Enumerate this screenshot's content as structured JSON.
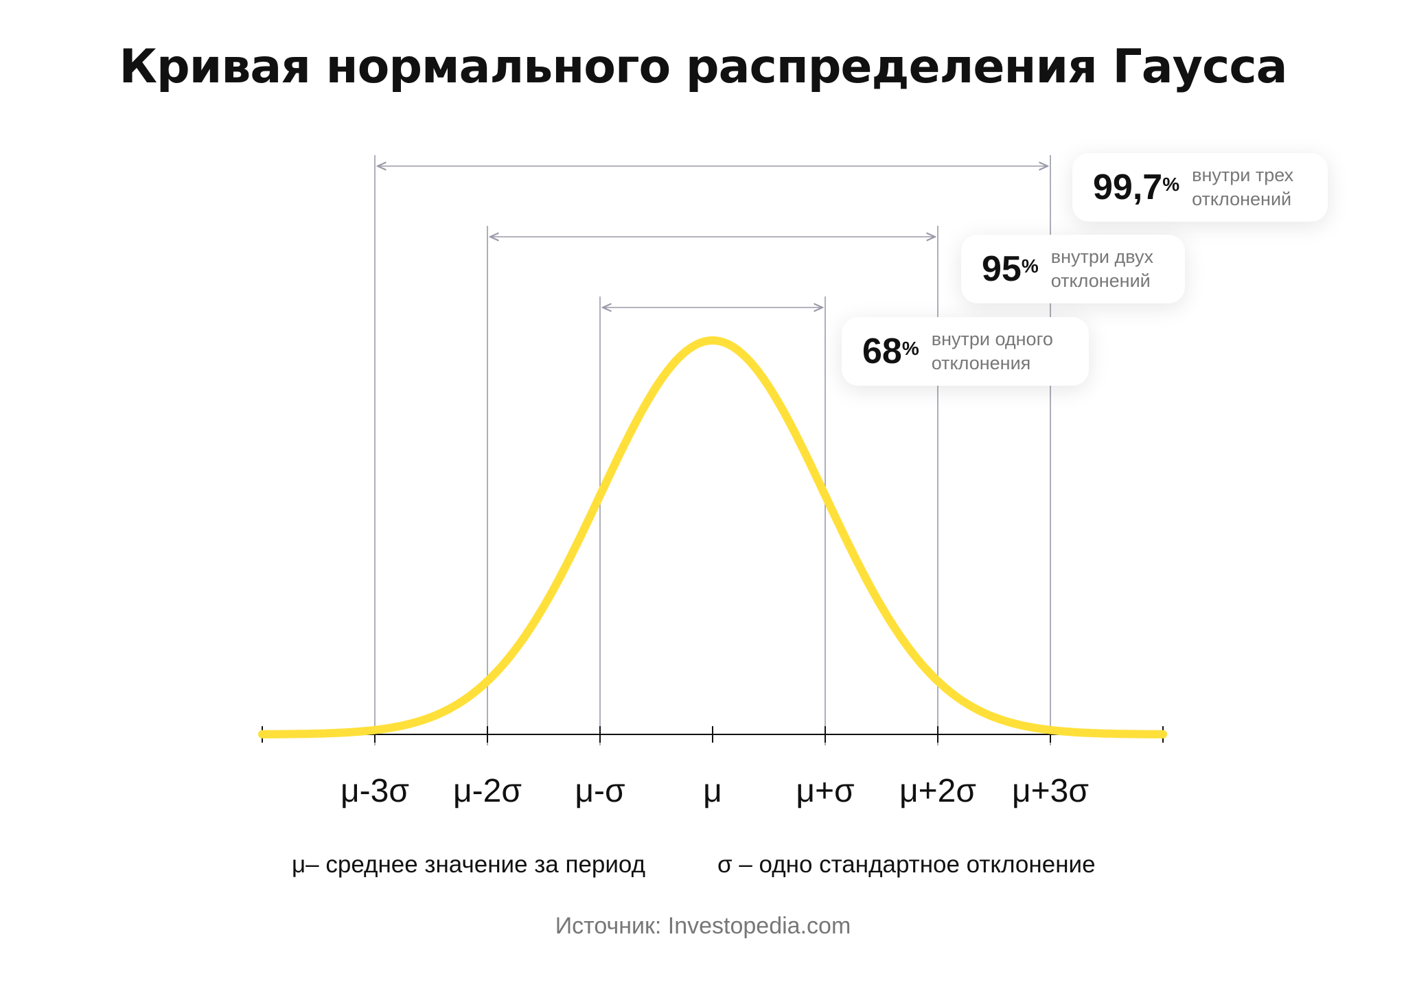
{
  "title": "Кривая нормального распределения Гаусса",
  "chart_data": {
    "type": "line",
    "title": "Кривая нормального распределения Гаусса",
    "distribution": "normal",
    "mean": 0,
    "std": 1,
    "xlim": [
      -4,
      4
    ],
    "x_ticks": [
      -3,
      -2,
      -1,
      0,
      1,
      2,
      3
    ],
    "tick_labels": [
      "μ-3σ",
      "μ-2σ",
      "μ-σ",
      "μ",
      "μ+σ",
      "μ+2σ",
      "μ+3σ"
    ],
    "intervals": [
      {
        "sigma": 3,
        "percent": "99,7",
        "text": "внутри трех отклонений",
        "line1": "внутри трех",
        "line2": "отклонений"
      },
      {
        "sigma": 2,
        "percent": "95",
        "text": "внутри двух отклонений",
        "line1": "внутри двух",
        "line2": "отклонений"
      },
      {
        "sigma": 1,
        "percent": "68",
        "text": "внутри одного отклонения",
        "line1": "внутри одного",
        "line2": "отклонения"
      }
    ],
    "percent_sign": "%",
    "grid": false,
    "colors": {
      "curve": "#FFE03A",
      "axis": "#111111",
      "guides": "#9A9AA8"
    }
  },
  "legend": {
    "mu": "μ– среднее значение за период",
    "sigma": "σ – одно стандартное отклонение"
  },
  "source": "Источник: Investopedia.com"
}
